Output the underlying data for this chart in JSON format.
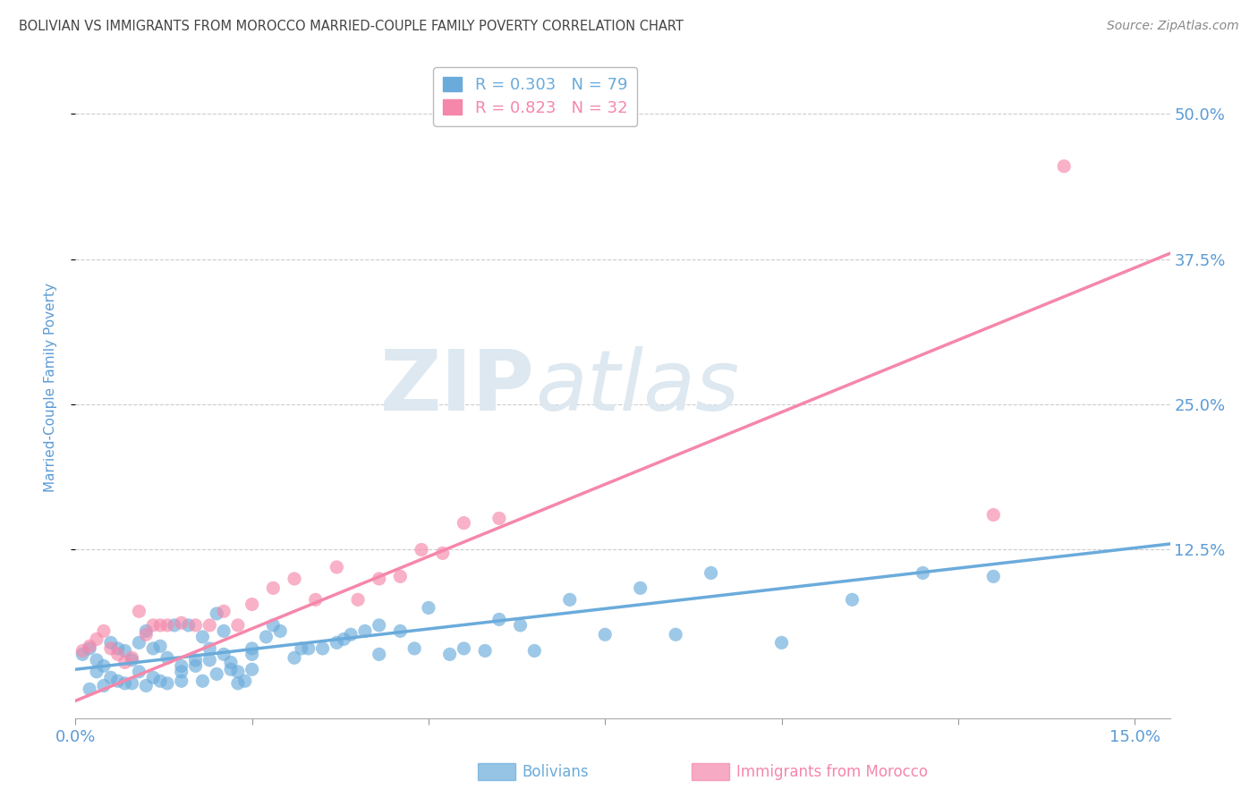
{
  "title": "BOLIVIAN VS IMMIGRANTS FROM MOROCCO MARRIED-COUPLE FAMILY POVERTY CORRELATION CHART",
  "source": "Source: ZipAtlas.com",
  "ylabel": "Married-Couple Family Poverty",
  "ytick_vals": [
    0.125,
    0.25,
    0.375,
    0.5
  ],
  "ytick_labels": [
    "12.5%",
    "25.0%",
    "37.5%",
    "50.0%"
  ],
  "xtick_vals": [
    0.0,
    0.025,
    0.05,
    0.075,
    0.1,
    0.125,
    0.15
  ],
  "xlim": [
    0.0,
    0.155
  ],
  "ylim": [
    -0.02,
    0.55
  ],
  "watermark": "ZIPatlas",
  "legend_entries": [
    {
      "label": "R = 0.303   N = 79",
      "color": "#6aabdb"
    },
    {
      "label": "R = 0.823   N = 32",
      "color": "#f587aa"
    }
  ],
  "bolivians_color": "#6aabdb",
  "morocco_color": "#f587aa",
  "bolivians_scatter_x": [
    0.001,
    0.002,
    0.003,
    0.004,
    0.005,
    0.006,
    0.007,
    0.008,
    0.009,
    0.01,
    0.011,
    0.012,
    0.013,
    0.014,
    0.015,
    0.016,
    0.017,
    0.018,
    0.019,
    0.02,
    0.021,
    0.022,
    0.023,
    0.024,
    0.025,
    0.003,
    0.005,
    0.007,
    0.009,
    0.011,
    0.013,
    0.015,
    0.017,
    0.019,
    0.021,
    0.023,
    0.025,
    0.027,
    0.029,
    0.031,
    0.033,
    0.035,
    0.037,
    0.039,
    0.041,
    0.043,
    0.046,
    0.05,
    0.055,
    0.06,
    0.065,
    0.07,
    0.075,
    0.08,
    0.085,
    0.09,
    0.1,
    0.11,
    0.12,
    0.13,
    0.002,
    0.004,
    0.006,
    0.008,
    0.01,
    0.012,
    0.015,
    0.018,
    0.02,
    0.022,
    0.025,
    0.028,
    0.032,
    0.038,
    0.043,
    0.048,
    0.053,
    0.058,
    0.063
  ],
  "bolivians_scatter_y": [
    0.035,
    0.04,
    0.03,
    0.025,
    0.045,
    0.04,
    0.038,
    0.03,
    0.045,
    0.055,
    0.04,
    0.042,
    0.032,
    0.06,
    0.025,
    0.06,
    0.025,
    0.05,
    0.03,
    0.07,
    0.035,
    0.022,
    0.01,
    0.012,
    0.022,
    0.02,
    0.015,
    0.01,
    0.02,
    0.015,
    0.01,
    0.02,
    0.03,
    0.04,
    0.055,
    0.02,
    0.04,
    0.05,
    0.055,
    0.032,
    0.04,
    0.04,
    0.045,
    0.052,
    0.055,
    0.06,
    0.055,
    0.075,
    0.04,
    0.065,
    0.038,
    0.082,
    0.052,
    0.092,
    0.052,
    0.105,
    0.045,
    0.082,
    0.105,
    0.102,
    0.005,
    0.008,
    0.012,
    0.01,
    0.008,
    0.012,
    0.012,
    0.012,
    0.018,
    0.028,
    0.035,
    0.06,
    0.04,
    0.048,
    0.035,
    0.04,
    0.035,
    0.038,
    0.06
  ],
  "morocco_scatter_x": [
    0.001,
    0.002,
    0.003,
    0.004,
    0.005,
    0.006,
    0.007,
    0.008,
    0.009,
    0.01,
    0.011,
    0.012,
    0.013,
    0.015,
    0.017,
    0.019,
    0.021,
    0.023,
    0.025,
    0.028,
    0.031,
    0.034,
    0.037,
    0.04,
    0.043,
    0.046,
    0.049,
    0.052,
    0.055,
    0.06,
    0.13,
    0.14
  ],
  "morocco_scatter_y": [
    0.038,
    0.042,
    0.048,
    0.055,
    0.04,
    0.035,
    0.028,
    0.032,
    0.072,
    0.052,
    0.06,
    0.06,
    0.06,
    0.062,
    0.06,
    0.06,
    0.072,
    0.06,
    0.078,
    0.092,
    0.1,
    0.082,
    0.11,
    0.082,
    0.1,
    0.102,
    0.125,
    0.122,
    0.148,
    0.152,
    0.155,
    0.455
  ],
  "bolivians_trend_x": [
    0.0,
    0.155
  ],
  "bolivians_trend_y": [
    0.022,
    0.13
  ],
  "morocco_trend_x": [
    0.0,
    0.155
  ],
  "morocco_trend_y": [
    -0.005,
    0.38
  ],
  "grid_color": "#cccccc",
  "background_color": "#ffffff",
  "title_color": "#444444",
  "axis_label_color": "#5b9bd5",
  "tick_label_color": "#5b9bd5",
  "watermark_color": "#dde8f0",
  "figsize": [
    14.06,
    8.92
  ],
  "dpi": 100
}
